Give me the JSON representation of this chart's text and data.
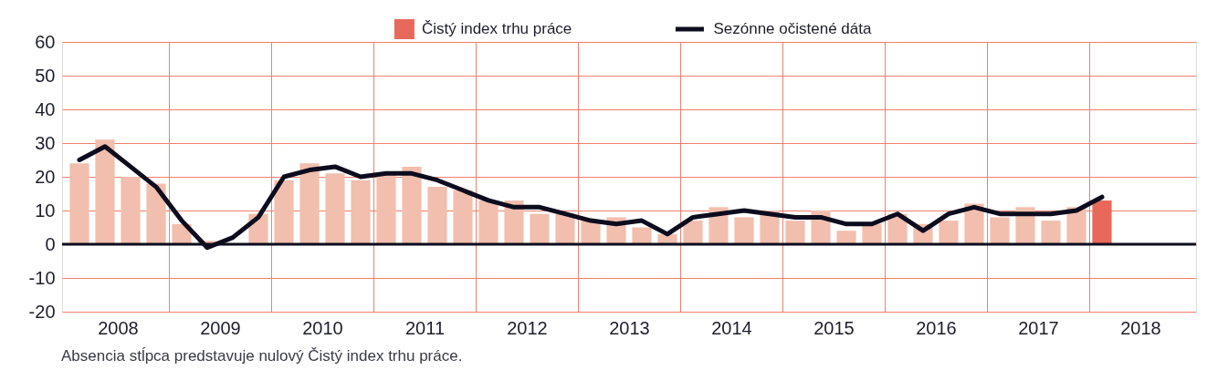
{
  "chart_data": {
    "type": "bar",
    "x": [
      2008.125,
      2008.375,
      2008.625,
      2008.875,
      2009.125,
      2009.375,
      2009.625,
      2009.875,
      2010.125,
      2010.375,
      2010.625,
      2010.875,
      2011.125,
      2011.375,
      2011.625,
      2011.875,
      2012.125,
      2012.375,
      2012.625,
      2012.875,
      2013.125,
      2013.375,
      2013.625,
      2013.875,
      2014.125,
      2014.375,
      2014.625,
      2014.875,
      2015.125,
      2015.375,
      2015.625,
      2015.875,
      2016.125,
      2016.375,
      2016.625,
      2016.875,
      2017.125,
      2017.375,
      2017.625,
      2017.875,
      2018.125
    ],
    "series": [
      {
        "name": "Čistý index trhu práce",
        "color": "#e8695a",
        "colors": [
          "#f2bead",
          "#f2bead",
          "#f2bead",
          "#f2bead",
          "#f2bead",
          "#f2bead",
          "#f2bead",
          "#f2bead",
          "#f2bead",
          "#f2bead",
          "#f2bead",
          "#f2bead",
          "#f2bead",
          "#f2bead",
          "#f2bead",
          "#f2bead",
          "#f2bead",
          "#f2bead",
          "#f2bead",
          "#f2bead",
          "#f2bead",
          "#f2bead",
          "#f2bead",
          "#f2bead",
          "#f2bead",
          "#f2bead",
          "#f2bead",
          "#f2bead",
          "#f2bead",
          "#f2bead",
          "#f2bead",
          "#f2bead",
          "#f2bead",
          "#f2bead",
          "#f2bead",
          "#f2bead",
          "#f2bead",
          "#f2bead",
          "#f2bead",
          "#f2bead",
          "#e8695a"
        ],
        "values": [
          24,
          31,
          20,
          18,
          6,
          1,
          0,
          9,
          19,
          24,
          21,
          19,
          21,
          23,
          17,
          16,
          13,
          13,
          9,
          9,
          7,
          8,
          5,
          3,
          7,
          11,
          8,
          10,
          7,
          10,
          4,
          6,
          9,
          6,
          7,
          12,
          8,
          11,
          7,
          11,
          13
        ]
      },
      {
        "name": "Sezónne očistené dáta",
        "type": "line",
        "color": "#0c0c1e",
        "values": [
          25,
          29,
          23,
          17,
          7,
          -1,
          2,
          8,
          20,
          22,
          23,
          20,
          21,
          21,
          19,
          16,
          13,
          11,
          11,
          9,
          7,
          6,
          7,
          3,
          8,
          9,
          10,
          9,
          8,
          8,
          6,
          6,
          9,
          4,
          9,
          11,
          9,
          9,
          9,
          10,
          14
        ]
      }
    ],
    "xlim": [
      2008,
      2019
    ],
    "xticks": [
      {
        "value": 2008.5,
        "label": "2008"
      },
      {
        "value": 2009,
        "label": null
      },
      {
        "value": 2009.5,
        "label": "2009"
      },
      {
        "value": 2010,
        "label": null
      },
      {
        "value": 2010.5,
        "label": "2010"
      },
      {
        "value": 2011,
        "label": null
      },
      {
        "value": 2011.5,
        "label": "2011"
      },
      {
        "value": 2012,
        "label": null
      },
      {
        "value": 2012.5,
        "label": "2012"
      },
      {
        "value": 2013,
        "label": null
      },
      {
        "value": 2013.5,
        "label": "2013"
      },
      {
        "value": 2014,
        "label": null
      },
      {
        "value": 2014.5,
        "label": "2014"
      },
      {
        "value": 2015,
        "label": null
      },
      {
        "value": 2015.5,
        "label": "2015"
      },
      {
        "value": 2016,
        "label": null
      },
      {
        "value": 2016.5,
        "label": "2016"
      },
      {
        "value": 2017,
        "label": null
      },
      {
        "value": 2017.5,
        "label": "2017"
      },
      {
        "value": 2018,
        "label": null
      },
      {
        "value": 2018.5,
        "label": "2018"
      }
    ],
    "ylim": [
      -20,
      60
    ],
    "yticks": [
      -20,
      -10,
      0,
      10,
      20,
      30,
      40,
      50,
      60
    ],
    "ref_lines": [
      {
        "axis": "y",
        "value": 0,
        "color": "#0c0c1e"
      }
    ],
    "grid": true,
    "legend": "top",
    "annotations": [
      "Absencia stĺpca predstavuje nulový Čistý index trhu práce."
    ]
  }
}
